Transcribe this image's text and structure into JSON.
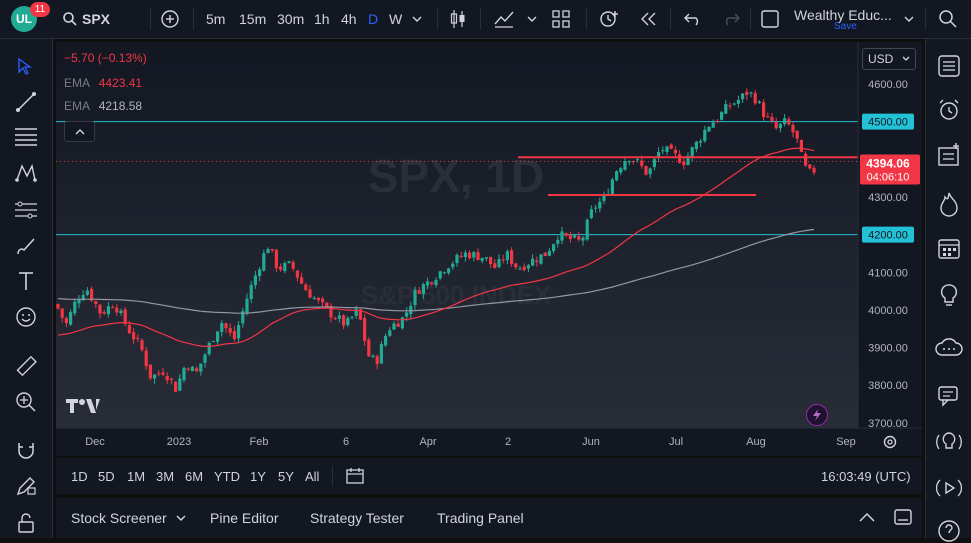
{
  "topbar": {
    "logo_text": "UL",
    "notification_count": "11",
    "symbol": "SPX",
    "intervals": [
      "5m",
      "15m",
      "30m",
      "1h",
      "4h",
      "D",
      "W"
    ],
    "active_interval": "D",
    "layout_name": "Wealthy Educ...",
    "save_label": "Save"
  },
  "chart": {
    "change_text": "−5.70 (−0.13%)",
    "ema1_label": "EMA",
    "ema1_value": "4423.41",
    "ema2_label": "EMA",
    "ema2_value": "4218.58",
    "currency": "USD",
    "watermark_symbol": "SPX, 1D",
    "watermark_name": "S&P 500 INDEX",
    "price_labels": [
      "4600.00",
      "4500.00",
      "4400.00",
      "4300.00",
      "4200.00",
      "4100.00",
      "4000.00",
      "3900.00",
      "3800.00",
      "3700.00"
    ],
    "highlighted_levels": [
      "4500.00",
      "4200.00"
    ],
    "last_price": "4394.06",
    "countdown": "04:06:10",
    "time_labels": [
      "Dec",
      "2023",
      "Feb",
      "6",
      "Apr",
      "2",
      "Jun",
      "Jul",
      "Aug",
      "Sep"
    ],
    "colors": {
      "up": "#22ab94",
      "down": "#f23645",
      "ema_fast": "#f23645",
      "ema_slow": "#9598a1",
      "hline": "#22c1d6",
      "support": "#f23645"
    }
  },
  "chart_data": {
    "type": "candlestick",
    "title": "SPX, 1D",
    "ylim": [
      3680,
      4640
    ],
    "x": [
      "2022-11-21",
      "2023-09-05"
    ],
    "xlabel": "",
    "ylabel": "",
    "horizontal_lines": [
      4500,
      4200
    ],
    "drawn_support_lines": [
      4400,
      4300
    ],
    "series": [
      {
        "name": "EMA",
        "values_end": 4423.41
      },
      {
        "name": "EMA",
        "values_end": 4218.58
      }
    ],
    "last": 4394.06,
    "grid": false
  },
  "timeframes": [
    "1D",
    "5D",
    "1M",
    "3M",
    "6M",
    "YTD",
    "1Y",
    "5Y",
    "All"
  ],
  "clock": "16:03:49 (UTC)",
  "panels": [
    "Stock Screener",
    "Pine Editor",
    "Strategy Tester",
    "Trading Panel"
  ]
}
